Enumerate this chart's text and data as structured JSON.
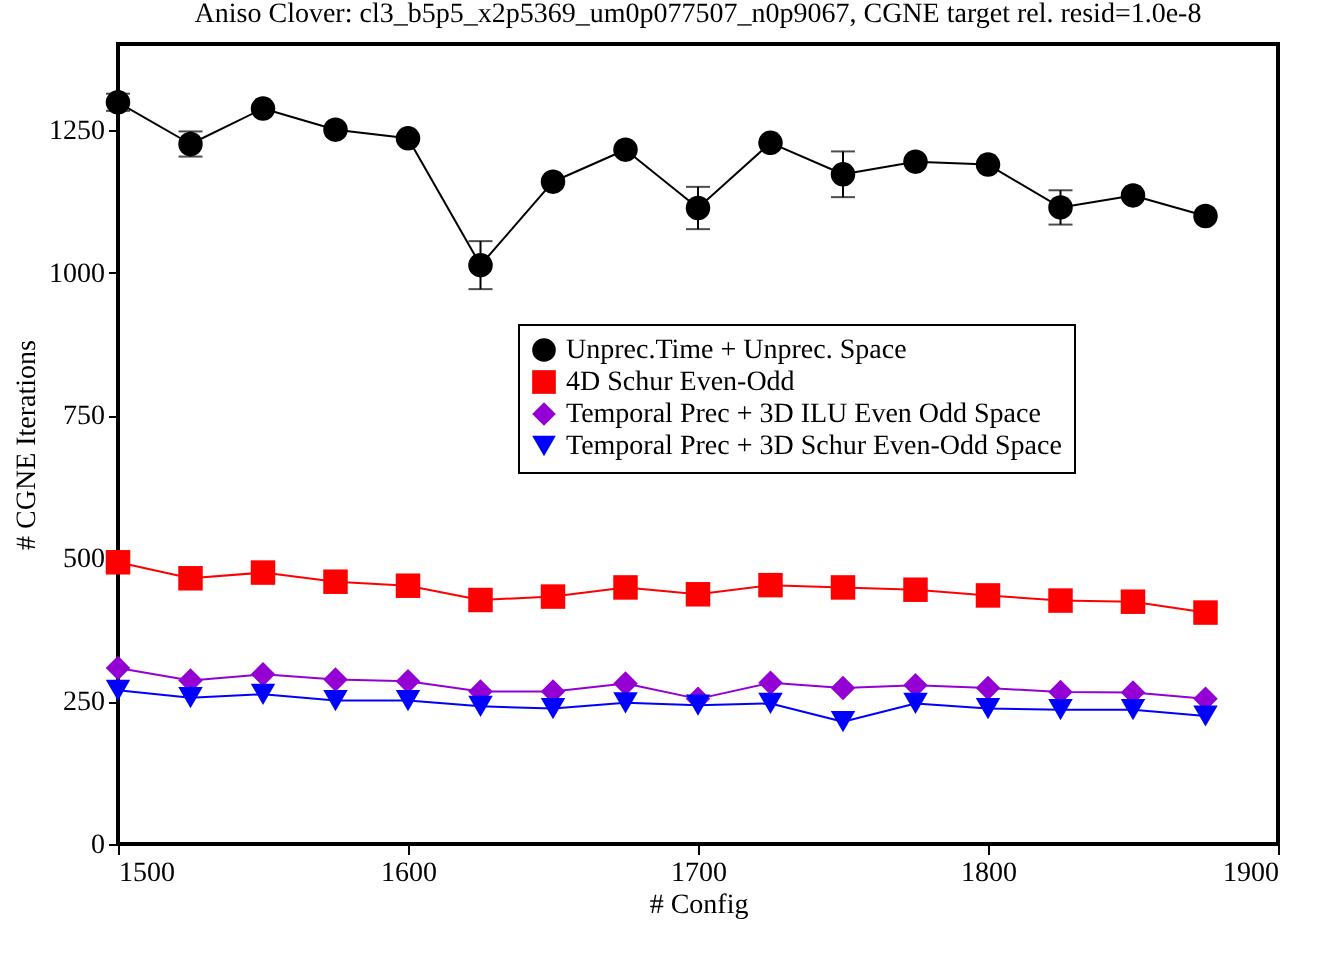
{
  "chart_data": {
    "type": "line",
    "title": "Aniso Clover: cl3_b5p5_x2p5369_um0p077507_n0p9067, CGNE target rel. resid=1.0e-8",
    "xlabel": "# Config",
    "ylabel": "# CGNE Iterations",
    "x": [
      1500,
      1525,
      1550,
      1575,
      1600,
      1625,
      1650,
      1675,
      1700,
      1725,
      1750,
      1775,
      1800,
      1825,
      1850,
      1875
    ],
    "xlim": [
      1500,
      1900
    ],
    "xticks": [
      1500,
      1600,
      1700,
      1800,
      1900
    ],
    "ylim": [
      0,
      1400
    ],
    "yticks": [
      0,
      250,
      500,
      750,
      1000,
      1250
    ],
    "grid": false,
    "legend": "right",
    "series": [
      {
        "name": "Unprec.Time + Unprec. Space",
        "color": "#000000",
        "marker": "circle",
        "values": [
          1298,
          1225,
          1287,
          1250,
          1235,
          1013,
          1159,
          1215,
          1113,
          1227,
          1172,
          1194,
          1189,
          1114,
          1135,
          1099
        ],
        "errors": [
          15,
          22,
          null,
          null,
          null,
          42,
          null,
          null,
          37,
          null,
          40,
          null,
          null,
          30,
          null,
          null
        ]
      },
      {
        "name": "4D Schur Even-Odd",
        "color": "#ff0000",
        "marker": "square",
        "values": [
          493,
          465,
          475,
          459,
          452,
          427,
          433,
          449,
          437,
          453,
          449,
          445,
          435,
          426,
          424,
          405
        ]
      },
      {
        "name": "Temporal Prec + 3D ILU Even Odd Space",
        "color": "#9400d3",
        "marker": "diamond",
        "values": [
          308,
          286,
          297,
          288,
          285,
          267,
          267,
          281,
          254,
          282,
          273,
          278,
          273,
          266,
          265,
          254
        ]
      },
      {
        "name": "Temporal Prec + 3D Schur Even-Odd Space",
        "color": "#0000ff",
        "marker": "triangle",
        "values": [
          269,
          256,
          262,
          251,
          251,
          241,
          237,
          247,
          243,
          246,
          214,
          246,
          237,
          235,
          235,
          224
        ]
      }
    ]
  }
}
